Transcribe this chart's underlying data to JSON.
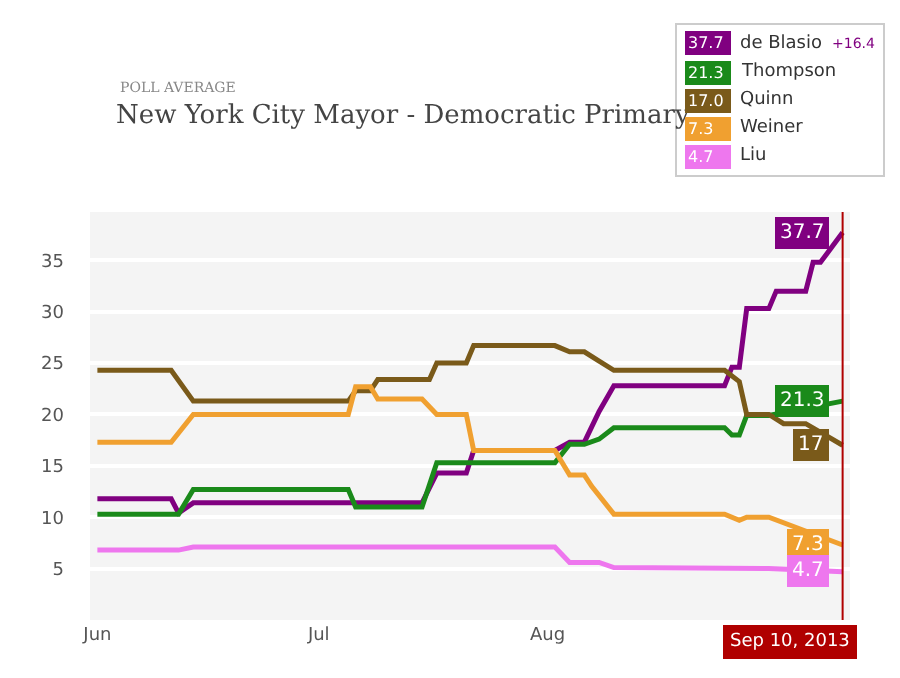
{
  "chart_data": {
    "type": "line",
    "title": "New York City Mayor - Democratic Primary",
    "subtitle": "POLL AVERAGE",
    "annotations": [
      "37.7",
      "21.3",
      "17.0",
      "7.3",
      "4.7",
      "+16.4"
    ],
    "xlim": [
      "2013-05-31",
      "2013-09-11"
    ],
    "xticks": [
      {
        "value": "2013-06-01",
        "label": "Jun"
      },
      {
        "value": "2013-07-01",
        "label": "Jul"
      },
      {
        "value": "2013-08-01",
        "label": "Aug"
      }
    ],
    "ylim": [
      0,
      39.7
    ],
    "yticks": [
      5,
      10,
      15,
      20,
      25,
      30,
      35
    ],
    "grid": "y",
    "legend": "top right",
    "ref_lines": [
      {
        "axis": "x",
        "value": "2013-09-10",
        "label": "Sep 10, 2013",
        "color": "#b00000"
      }
    ],
    "series": [
      {
        "name": "de Blasio",
        "color": "#800080",
        "x": [
          "2013-06-01",
          "2013-06-11",
          "2013-06-12",
          "2013-06-14",
          "2013-07-15",
          "2013-07-17",
          "2013-07-21",
          "2013-07-22",
          "2013-08-02",
          "2013-08-04",
          "2013-08-06",
          "2013-08-08",
          "2013-08-10",
          "2013-08-25",
          "2013-08-26",
          "2013-08-27",
          "2013-08-28",
          "2013-08-31",
          "2013-09-01",
          "2013-09-05",
          "2013-09-06",
          "2013-09-07",
          "2013-09-10"
        ],
        "values": [
          11.8,
          11.8,
          10.4,
          11.4,
          11.4,
          14.3,
          14.3,
          16.5,
          16.5,
          17.3,
          17.3,
          20.3,
          22.8,
          22.8,
          24.6,
          24.6,
          30.3,
          30.3,
          32.0,
          32.0,
          34.8,
          34.8,
          37.7
        ],
        "value_labels": [
          null,
          null,
          null,
          null,
          null,
          null,
          null,
          null,
          null,
          null,
          null,
          null,
          null,
          null,
          null,
          null,
          null,
          null,
          null,
          null,
          null,
          null,
          "37.7"
        ]
      },
      {
        "name": "Thompson",
        "color": "#1a8a1a",
        "x": [
          "2013-06-01",
          "2013-06-12",
          "2013-06-14",
          "2013-07-05",
          "2013-07-06",
          "2013-07-15",
          "2013-07-17",
          "2013-08-02",
          "2013-08-04",
          "2013-08-06",
          "2013-08-08",
          "2013-08-10",
          "2013-08-25",
          "2013-08-26",
          "2013-08-27",
          "2013-08-28",
          "2013-08-31",
          "2013-09-10"
        ],
        "values": [
          10.3,
          10.3,
          12.7,
          12.7,
          11.0,
          11.0,
          15.3,
          15.3,
          17.1,
          17.1,
          17.6,
          18.7,
          18.7,
          18.0,
          18.0,
          19.9,
          19.9,
          21.3
        ],
        "value_labels": [
          null,
          null,
          null,
          null,
          null,
          null,
          null,
          null,
          null,
          null,
          null,
          null,
          null,
          null,
          null,
          null,
          null,
          "21.3"
        ]
      },
      {
        "name": "Quinn",
        "color": "#7a5a1a",
        "x": [
          "2013-06-01",
          "2013-06-11",
          "2013-06-14",
          "2013-07-05",
          "2013-07-06",
          "2013-07-08",
          "2013-07-09",
          "2013-07-16",
          "2013-07-17",
          "2013-07-21",
          "2013-07-22",
          "2013-08-02",
          "2013-08-04",
          "2013-08-06",
          "2013-08-08",
          "2013-08-10",
          "2013-08-25",
          "2013-08-27",
          "2013-08-28",
          "2013-08-31",
          "2013-09-02",
          "2013-09-05",
          "2013-09-10"
        ],
        "values": [
          24.3,
          24.3,
          21.3,
          21.3,
          22.3,
          22.3,
          23.4,
          23.4,
          25.0,
          25.0,
          26.7,
          26.7,
          26.1,
          26.1,
          25.2,
          24.3,
          24.3,
          23.2,
          20.0,
          20.0,
          19.1,
          19.1,
          17.0
        ],
        "value_labels": [
          null,
          null,
          null,
          null,
          null,
          null,
          null,
          null,
          null,
          null,
          null,
          null,
          null,
          null,
          null,
          null,
          null,
          null,
          null,
          null,
          null,
          null,
          "17"
        ]
      },
      {
        "name": "Weiner",
        "color": "#f0a030",
        "x": [
          "2013-06-01",
          "2013-06-11",
          "2013-06-14",
          "2013-07-05",
          "2013-07-06",
          "2013-07-08",
          "2013-07-09",
          "2013-07-15",
          "2013-07-17",
          "2013-07-21",
          "2013-07-22",
          "2013-08-02",
          "2013-08-04",
          "2013-08-06",
          "2013-08-07",
          "2013-08-10",
          "2013-08-25",
          "2013-08-27",
          "2013-08-28",
          "2013-08-31",
          "2013-09-10"
        ],
        "values": [
          17.3,
          17.3,
          20.0,
          20.0,
          22.7,
          22.7,
          21.5,
          21.5,
          20.0,
          20.0,
          16.5,
          16.5,
          14.1,
          14.1,
          13.0,
          10.3,
          10.3,
          9.7,
          10.0,
          10.0,
          7.3
        ],
        "value_labels": [
          null,
          null,
          null,
          null,
          null,
          null,
          null,
          null,
          null,
          null,
          null,
          null,
          null,
          null,
          null,
          null,
          null,
          null,
          null,
          null,
          "7.3"
        ]
      },
      {
        "name": "Liu",
        "color": "#ee77ee",
        "x": [
          "2013-06-01",
          "2013-06-12",
          "2013-06-14",
          "2013-08-02",
          "2013-08-04",
          "2013-08-08",
          "2013-08-10",
          "2013-08-31",
          "2013-09-10"
        ],
        "values": [
          6.8,
          6.8,
          7.1,
          7.1,
          5.6,
          5.6,
          5.1,
          5.0,
          4.7
        ],
        "value_labels": [
          null,
          null,
          null,
          null,
          null,
          null,
          null,
          null,
          "4.7"
        ]
      }
    ]
  }
}
